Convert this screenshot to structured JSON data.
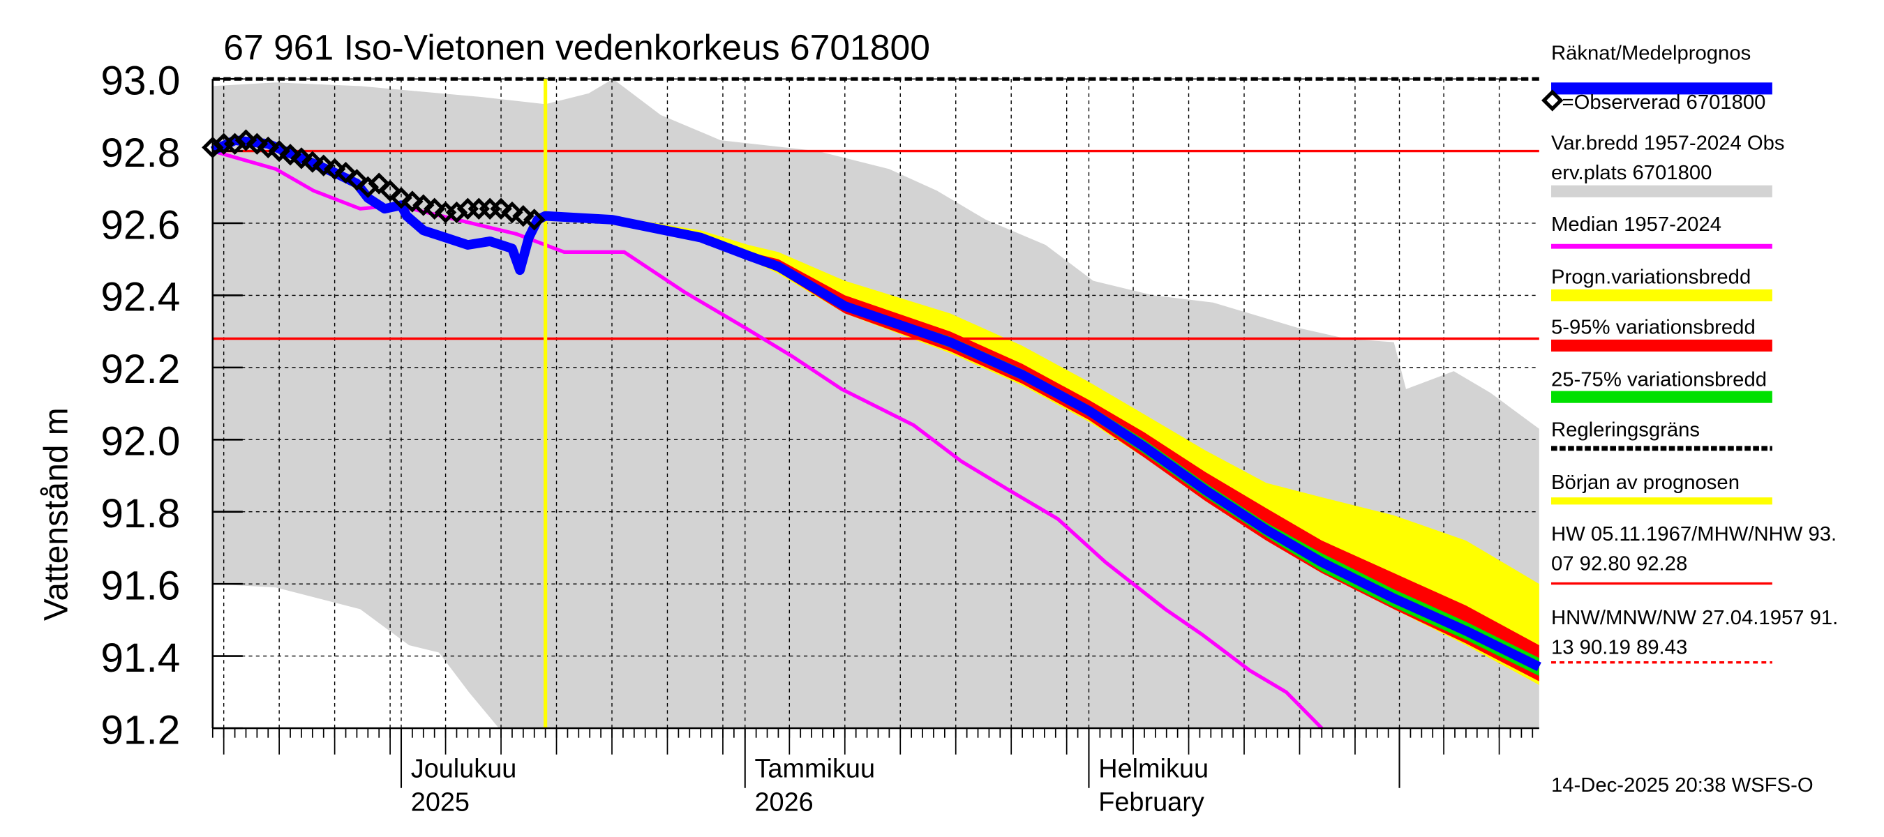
{
  "chart_data": {
    "type": "area",
    "title": "67 961 Iso-Vietonen vedenkorkeus 6701800",
    "ylabel": "Vattenstånd m",
    "xlabel": "",
    "x_unit": "days since 2025-11-14",
    "xlim": [
      0,
      119.6
    ],
    "ylim": [
      91.2,
      93.0
    ],
    "yticks": [
      "91.2",
      "91.4",
      "91.6",
      "91.8",
      "92.0",
      "92.2",
      "92.4",
      "92.6",
      "92.8",
      "93.0"
    ],
    "ytick_values": [
      91.2,
      91.4,
      91.6,
      91.8,
      92.0,
      92.2,
      92.4,
      92.6,
      92.8,
      93.0
    ],
    "grid": true,
    "month_labels": [
      {
        "day": 17,
        "line1": "Joulukuu",
        "line2": "2025"
      },
      {
        "day": 48,
        "line1": "Tammikuu",
        "line2": "2026"
      },
      {
        "day": 79,
        "line1": "Helmikuu",
        "line2": "February"
      }
    ],
    "month_starts": [
      17,
      48,
      79,
      107
    ],
    "forecast_start_day": 30,
    "hlines": {
      "MHW": 92.8,
      "MNW_level": 92.28,
      "regulation_limit": 93.0
    },
    "historical_range": {
      "upper": [
        [
          0,
          92.98
        ],
        [
          5.7,
          92.99
        ],
        [
          13.3,
          92.98
        ],
        [
          24.2,
          92.95
        ],
        [
          30,
          92.93
        ],
        [
          33.9,
          92.96
        ],
        [
          36.1,
          93.0
        ],
        [
          40.4,
          92.9
        ],
        [
          45.8,
          92.83
        ],
        [
          54.5,
          92.8
        ],
        [
          61,
          92.75
        ],
        [
          65.3,
          92.69
        ],
        [
          69.7,
          92.61
        ],
        [
          75.1,
          92.54
        ],
        [
          79.4,
          92.44
        ],
        [
          84.8,
          92.4
        ],
        [
          90.2,
          92.38
        ],
        [
          97.8,
          92.31
        ],
        [
          102.2,
          92.28
        ],
        [
          106.5,
          92.27
        ],
        [
          107.6,
          92.14
        ],
        [
          111.9,
          92.19
        ],
        [
          115.2,
          92.13
        ],
        [
          119.6,
          92.03
        ]
      ],
      "lower": [
        [
          0,
          91.6
        ],
        [
          5.7,
          91.59
        ],
        [
          13.3,
          91.53
        ],
        [
          17.7,
          91.43
        ],
        [
          20.4,
          91.41
        ],
        [
          23.1,
          91.3
        ],
        [
          25.8,
          91.2
        ],
        [
          119.6,
          91.2
        ]
      ]
    },
    "median": [
      [
        0,
        92.8
      ],
      [
        5.7,
        92.75
      ],
      [
        9.1,
        92.69
      ],
      [
        13.3,
        92.64
      ],
      [
        16.6,
        92.65
      ],
      [
        22,
        92.61
      ],
      [
        27.4,
        92.57
      ],
      [
        31.7,
        92.52
      ],
      [
        37.1,
        92.52
      ],
      [
        42.5,
        92.41
      ],
      [
        48,
        92.31
      ],
      [
        52.3,
        92.23
      ],
      [
        56.7,
        92.14
      ],
      [
        63.2,
        92.04
      ],
      [
        67.5,
        91.94
      ],
      [
        71.8,
        91.86
      ],
      [
        76.2,
        91.78
      ],
      [
        80.5,
        91.66
      ],
      [
        85.9,
        91.53
      ],
      [
        89.2,
        91.46
      ],
      [
        93.5,
        91.36
      ],
      [
        96.8,
        91.3
      ],
      [
        100,
        91.2
      ]
    ],
    "computed": [
      [
        0,
        92.8
      ],
      [
        2,
        92.83
      ],
      [
        5,
        92.82
      ],
      [
        8,
        92.78
      ],
      [
        11,
        92.74
      ],
      [
        13,
        92.71
      ],
      [
        14,
        92.67
      ],
      [
        15.5,
        92.64
      ],
      [
        17,
        92.65
      ],
      [
        17.5,
        92.62
      ],
      [
        19,
        92.58
      ],
      [
        21,
        92.56
      ],
      [
        23,
        92.54
      ],
      [
        25,
        92.55
      ],
      [
        27,
        92.53
      ],
      [
        27.7,
        92.47
      ],
      [
        28.5,
        92.56
      ],
      [
        29.3,
        92.61
      ],
      [
        30,
        92.62
      ]
    ],
    "forecast_x": [
      30,
      36,
      44,
      48.3,
      51,
      57,
      66.5,
      73,
      79,
      84,
      89.5,
      95,
      100,
      106.5,
      113,
      119.6
    ],
    "forecast_mean": [
      92.62,
      92.61,
      92.56,
      92.51,
      92.48,
      92.37,
      92.27,
      92.18,
      92.08,
      91.98,
      91.86,
      91.75,
      91.66,
      91.56,
      91.47,
      91.37
    ],
    "prog_range": {
      "upper": [
        92.62,
        92.62,
        92.58,
        92.54,
        92.52,
        92.44,
        92.35,
        92.26,
        92.16,
        92.07,
        91.97,
        91.88,
        91.84,
        91.79,
        91.72,
        91.6
      ],
      "lower": [
        92.62,
        92.61,
        92.55,
        92.5,
        92.46,
        92.35,
        92.24,
        92.15,
        92.05,
        91.95,
        91.83,
        91.72,
        91.63,
        91.53,
        91.43,
        91.32
      ]
    },
    "range_5_95": {
      "upper": [
        92.62,
        92.61,
        92.57,
        92.52,
        92.5,
        92.4,
        92.3,
        92.21,
        92.11,
        92.02,
        91.91,
        91.81,
        91.72,
        91.63,
        91.54,
        91.43
      ],
      "lower": [
        92.62,
        92.61,
        92.55,
        92.5,
        92.465,
        92.35,
        92.245,
        92.155,
        92.055,
        91.95,
        91.83,
        91.72,
        91.63,
        91.53,
        91.435,
        91.33
      ]
    },
    "range_25_75": {
      "upper": [
        92.62,
        92.61,
        92.56,
        92.515,
        92.49,
        92.38,
        92.285,
        92.195,
        92.095,
        92.0,
        91.88,
        91.77,
        91.685,
        91.585,
        91.495,
        91.395
      ],
      "lower": [
        92.62,
        92.61,
        92.56,
        92.505,
        92.47,
        92.36,
        92.255,
        92.165,
        92.065,
        91.96,
        91.84,
        91.73,
        91.635,
        91.535,
        91.445,
        91.345
      ]
    },
    "observed": [
      [
        0,
        92.81
      ],
      [
        1,
        92.82
      ],
      [
        2,
        92.82
      ],
      [
        3,
        92.83
      ],
      [
        4,
        92.82
      ],
      [
        5,
        92.81
      ],
      [
        6,
        92.8
      ],
      [
        7,
        92.79
      ],
      [
        8,
        92.78
      ],
      [
        9,
        92.77
      ],
      [
        10,
        92.76
      ],
      [
        11,
        92.75
      ],
      [
        12,
        92.74
      ],
      [
        13,
        92.72
      ],
      [
        14,
        92.7
      ],
      [
        15,
        92.71
      ],
      [
        16,
        92.69
      ],
      [
        17,
        92.67
      ],
      [
        18,
        92.66
      ],
      [
        19,
        92.65
      ],
      [
        20,
        92.64
      ],
      [
        21,
        92.63
      ],
      [
        22,
        92.63
      ],
      [
        23,
        92.64
      ],
      [
        24,
        92.64
      ],
      [
        25,
        92.64
      ],
      [
        26,
        92.64
      ],
      [
        27,
        92.63
      ],
      [
        28,
        92.62
      ],
      [
        29,
        92.61
      ]
    ],
    "colors": {
      "computed": "#0000ff",
      "historical": "#d3d3d3",
      "median": "#ff00ff",
      "prog": "#ffff00",
      "r595": "#ff0000",
      "r2575": "#00e000",
      "hline": "#ff0000",
      "forecast_start": "#ffff00"
    },
    "legend": [
      {
        "label": "Räknat/Medelprognos",
        "style": "blue-bar"
      },
      {
        "label": "=Observerad 6701800",
        "style": "diamond"
      },
      {
        "label": "Var.bredd 1957-2024   Obs",
        "label2": "erv.plats 6701800",
        "style": "gray-bar"
      },
      {
        "label": "Median 1957-2024",
        "style": "magenta-line"
      },
      {
        "label": "Progn.variationsbredd",
        "style": "yellow-bar"
      },
      {
        "label": "5-95% variationsbredd",
        "style": "red-bar"
      },
      {
        "label": "25-75% variationsbredd",
        "style": "green-bar"
      },
      {
        "label": "Regleringsgräns",
        "style": "black-dash"
      },
      {
        "label": "Början av prognosen",
        "style": "yellow-line"
      },
      {
        "label": "HW 05.11.1967/MHW/NHW 93.",
        "label2": "07 92.80 92.28",
        "style": "red-line"
      },
      {
        "label": "HNW/MNW/NW 27.04.1957 91.",
        "label2": "13 90.19 89.43",
        "style": "red-dash"
      }
    ],
    "timestamp": "14-Dec-2025 20:38 WSFS-O"
  }
}
